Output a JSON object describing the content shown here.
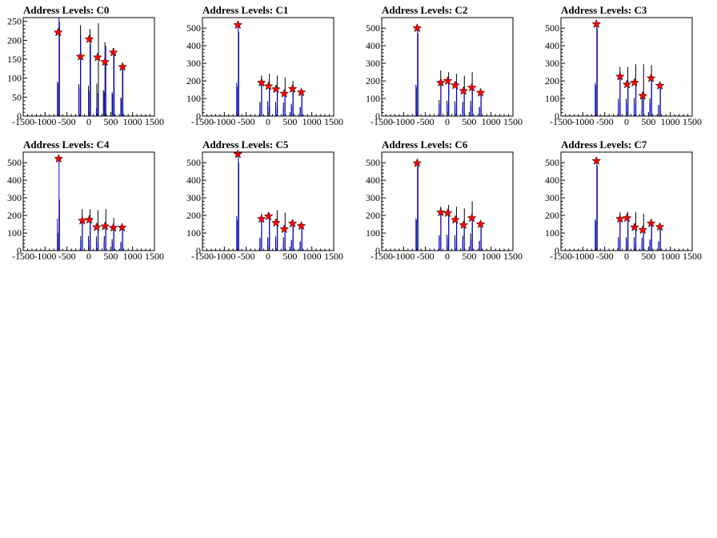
{
  "chart_data": [
    {
      "type": "bar",
      "title": "Address Levels: C0",
      "xlim": [
        -1500,
        1500
      ],
      "ylim": [
        0,
        260
      ],
      "xticks": [
        -1500,
        -1000,
        -500,
        0,
        500,
        1000,
        1500
      ],
      "xtick_labels": [
        "-1500",
        "-1000",
        "-500",
        "0",
        "500",
        "1000",
        "1500"
      ],
      "yticks": [
        0,
        50,
        100,
        150,
        200,
        250
      ],
      "ytick_labels": [
        "0",
        "50",
        "100",
        "150",
        "200",
        "250"
      ],
      "series": [
        {
          "color": "#000000",
          "x": [
            -680,
            -200,
            20,
            210,
            360,
            560,
            760
          ],
          "values": [
            250,
            240,
            230,
            245,
            195,
            180,
            140
          ]
        },
        {
          "color": "#0000ff",
          "x": [
            -690,
            -195,
            30,
            200,
            380,
            570,
            770
          ],
          "values": [
            260,
            215,
            190,
            60,
            185,
            165,
            130
          ]
        }
      ],
      "peaks": {
        "x": [
          -700,
          -190,
          10,
          200,
          370,
          560,
          770
        ],
        "values": [
          221,
          157,
          203,
          155,
          143,
          168,
          130
        ]
      }
    },
    {
      "type": "bar",
      "title": "Address Levels: C1",
      "xlim": [
        -1500,
        1500
      ],
      "ylim": [
        0,
        560
      ],
      "xticks": [
        -1500,
        -1000,
        -500,
        0,
        500,
        1000,
        1500
      ],
      "xtick_labels": [
        "-1500",
        "-1000",
        "-500",
        "0",
        "500",
        "1000",
        "1500"
      ],
      "yticks": [
        0,
        100,
        200,
        300,
        400,
        500
      ],
      "ytick_labels": [
        "0",
        "100",
        "200",
        "300",
        "400",
        "500"
      ],
      "series": [
        {
          "color": "#000000",
          "x": [
            -680,
            -160,
            20,
            200,
            380,
            560,
            760
          ],
          "values": [
            480,
            230,
            240,
            230,
            220,
            200,
            150
          ]
        },
        {
          "color": "#0000ff",
          "x": [
            -690,
            -155,
            25,
            205,
            375,
            565,
            765
          ],
          "values": [
            540,
            190,
            170,
            150,
            130,
            160,
            135
          ]
        }
      ],
      "peaks": {
        "x": [
          -690,
          -150,
          10,
          180,
          370,
          560,
          760
        ],
        "values": [
          518,
          190,
          170,
          153,
          128,
          155,
          135
        ]
      }
    },
    {
      "type": "bar",
      "title": "Address Levels: C2",
      "xlim": [
        -1500,
        1500
      ],
      "ylim": [
        0,
        560
      ],
      "xticks": [
        -1500,
        -1000,
        -500,
        0,
        500,
        1000,
        1500
      ],
      "xtick_labels": [
        "-1500",
        "-1000",
        "-500",
        "0",
        "500",
        "1000",
        "1500"
      ],
      "yticks": [
        0,
        100,
        200,
        300,
        400,
        500
      ],
      "ytick_labels": [
        "0",
        "100",
        "200",
        "300",
        "400",
        "500"
      ],
      "series": [
        {
          "color": "#000000",
          "x": [
            -680,
            -160,
            20,
            200,
            380,
            560,
            760
          ],
          "values": [
            470,
            260,
            250,
            240,
            230,
            250,
            150
          ]
        },
        {
          "color": "#0000ff",
          "x": [
            -690,
            -155,
            25,
            205,
            375,
            565,
            765
          ],
          "values": [
            510,
            190,
            200,
            170,
            150,
            160,
            130
          ]
        }
      ],
      "peaks": {
        "x": [
          -690,
          -150,
          10,
          180,
          370,
          560,
          760
        ],
        "values": [
          500,
          190,
          200,
          175,
          143,
          162,
          133
        ]
      }
    },
    {
      "type": "bar",
      "title": "Address Levels: C3",
      "xlim": [
        -1500,
        1500
      ],
      "ylim": [
        0,
        560
      ],
      "xticks": [
        -1500,
        -1000,
        -500,
        0,
        500,
        1000,
        1500
      ],
      "xtick_labels": [
        "-1500",
        "-1000",
        "-500",
        "0",
        "500",
        "1000",
        "1500"
      ],
      "yticks": [
        0,
        100,
        200,
        300,
        400,
        500
      ],
      "ytick_labels": [
        "0",
        "100",
        "200",
        "300",
        "400",
        "500"
      ],
      "series": [
        {
          "color": "#000000",
          "x": [
            -680,
            -160,
            20,
            200,
            380,
            560,
            760
          ],
          "values": [
            500,
            280,
            280,
            295,
            295,
            290,
            180
          ]
        },
        {
          "color": "#0000ff",
          "x": [
            -690,
            -155,
            25,
            205,
            375,
            565,
            765
          ],
          "values": [
            540,
            240,
            200,
            200,
            110,
            220,
            175
          ]
        }
      ],
      "peaks": {
        "x": [
          -690,
          -150,
          10,
          180,
          370,
          560,
          760
        ],
        "values": [
          523,
          225,
          180,
          190,
          115,
          215,
          173
        ]
      }
    },
    {
      "type": "bar",
      "title": "Address Levels: C4",
      "xlim": [
        -1500,
        1500
      ],
      "ylim": [
        0,
        560
      ],
      "xticks": [
        -1500,
        -1000,
        -500,
        0,
        500,
        1000,
        1500
      ],
      "xtick_labels": [
        "-1500",
        "-1000",
        "-500",
        "0",
        "500",
        "1000",
        "1500"
      ],
      "yticks": [
        0,
        100,
        200,
        300,
        400,
        500
      ],
      "ytick_labels": [
        "0",
        "100",
        "200",
        "300",
        "400",
        "500"
      ],
      "series": [
        {
          "color": "#000000",
          "x": [
            -680,
            -160,
            20,
            200,
            380,
            560,
            760
          ],
          "values": [
            290,
            235,
            235,
            230,
            235,
            185,
            140
          ]
        },
        {
          "color": "#0000ff",
          "x": [
            -690,
            -155,
            25,
            205,
            375,
            565,
            765
          ],
          "values": [
            520,
            170,
            175,
            135,
            140,
            130,
            130
          ]
        }
      ],
      "peaks": {
        "x": [
          -690,
          -150,
          10,
          180,
          370,
          560,
          760
        ],
        "values": [
          522,
          170,
          175,
          133,
          138,
          130,
          131
        ]
      }
    },
    {
      "type": "bar",
      "title": "Address Levels: C5",
      "xlim": [
        -1500,
        1500
      ],
      "ylim": [
        0,
        560
      ],
      "xticks": [
        -1500,
        -1000,
        -500,
        0,
        500,
        1000,
        1500
      ],
      "xtick_labels": [
        "-1500",
        "-1000",
        "-500",
        "0",
        "500",
        "1000",
        "1500"
      ],
      "yticks": [
        0,
        100,
        200,
        300,
        400,
        500
      ],
      "ytick_labels": [
        "0",
        "100",
        "200",
        "300",
        "400",
        "500"
      ],
      "series": [
        {
          "color": "#000000",
          "x": [
            -680,
            -160,
            20,
            200,
            380,
            560,
            760
          ],
          "values": [
            500,
            210,
            215,
            230,
            215,
            175,
            150
          ]
        },
        {
          "color": "#0000ff",
          "x": [
            -690,
            -155,
            25,
            205,
            375,
            565,
            765
          ],
          "values": [
            560,
            190,
            200,
            160,
            130,
            160,
            140
          ]
        }
      ],
      "peaks": {
        "x": [
          -690,
          -150,
          10,
          180,
          370,
          560,
          760
        ],
        "values": [
          548,
          180,
          195,
          158,
          122,
          154,
          140
        ]
      }
    },
    {
      "type": "bar",
      "title": "Address Levels: C6",
      "xlim": [
        -1500,
        1500
      ],
      "ylim": [
        0,
        560
      ],
      "xticks": [
        -1500,
        -1000,
        -500,
        0,
        500,
        1000,
        1500
      ],
      "xtick_labels": [
        "-1500",
        "-1000",
        "-500",
        "0",
        "500",
        "1000",
        "1500"
      ],
      "yticks": [
        0,
        100,
        200,
        300,
        400,
        500
      ],
      "ytick_labels": [
        "0",
        "100",
        "200",
        "300",
        "400",
        "500"
      ],
      "series": [
        {
          "color": "#000000",
          "x": [
            -680,
            -160,
            20,
            200,
            380,
            560,
            760
          ],
          "values": [
            500,
            250,
            260,
            250,
            240,
            280,
            160
          ]
        },
        {
          "color": "#0000ff",
          "x": [
            -690,
            -155,
            25,
            205,
            375,
            565,
            765
          ],
          "values": [
            520,
            220,
            215,
            180,
            150,
            185,
            150
          ]
        }
      ],
      "peaks": {
        "x": [
          -690,
          -150,
          10,
          180,
          370,
          560,
          760
        ],
        "values": [
          497,
          217,
          213,
          175,
          145,
          185,
          150
        ]
      }
    },
    {
      "type": "bar",
      "title": "Address Levels: C7",
      "xlim": [
        -1500,
        1500
      ],
      "ylim": [
        0,
        560
      ],
      "xticks": [
        -1500,
        -1000,
        -500,
        0,
        500,
        1000,
        1500
      ],
      "xtick_labels": [
        "-1500",
        "-1000",
        "-500",
        "0",
        "500",
        "1000",
        "1500"
      ],
      "yticks": [
        0,
        100,
        200,
        300,
        400,
        500
      ],
      "ytick_labels": [
        "0",
        "100",
        "200",
        "300",
        "400",
        "500"
      ],
      "series": [
        {
          "color": "#000000",
          "x": [
            -680,
            -160,
            20,
            200,
            380,
            560,
            760
          ],
          "values": [
            480,
            220,
            220,
            220,
            210,
            180,
            150
          ]
        },
        {
          "color": "#0000ff",
          "x": [
            -690,
            -155,
            25,
            205,
            375,
            565,
            765
          ],
          "values": [
            510,
            190,
            190,
            140,
            120,
            160,
            140
          ]
        }
      ],
      "peaks": {
        "x": [
          -690,
          -150,
          10,
          180,
          370,
          560,
          760
        ],
        "values": [
          510,
          180,
          185,
          132,
          117,
          155,
          135
        ]
      }
    }
  ]
}
